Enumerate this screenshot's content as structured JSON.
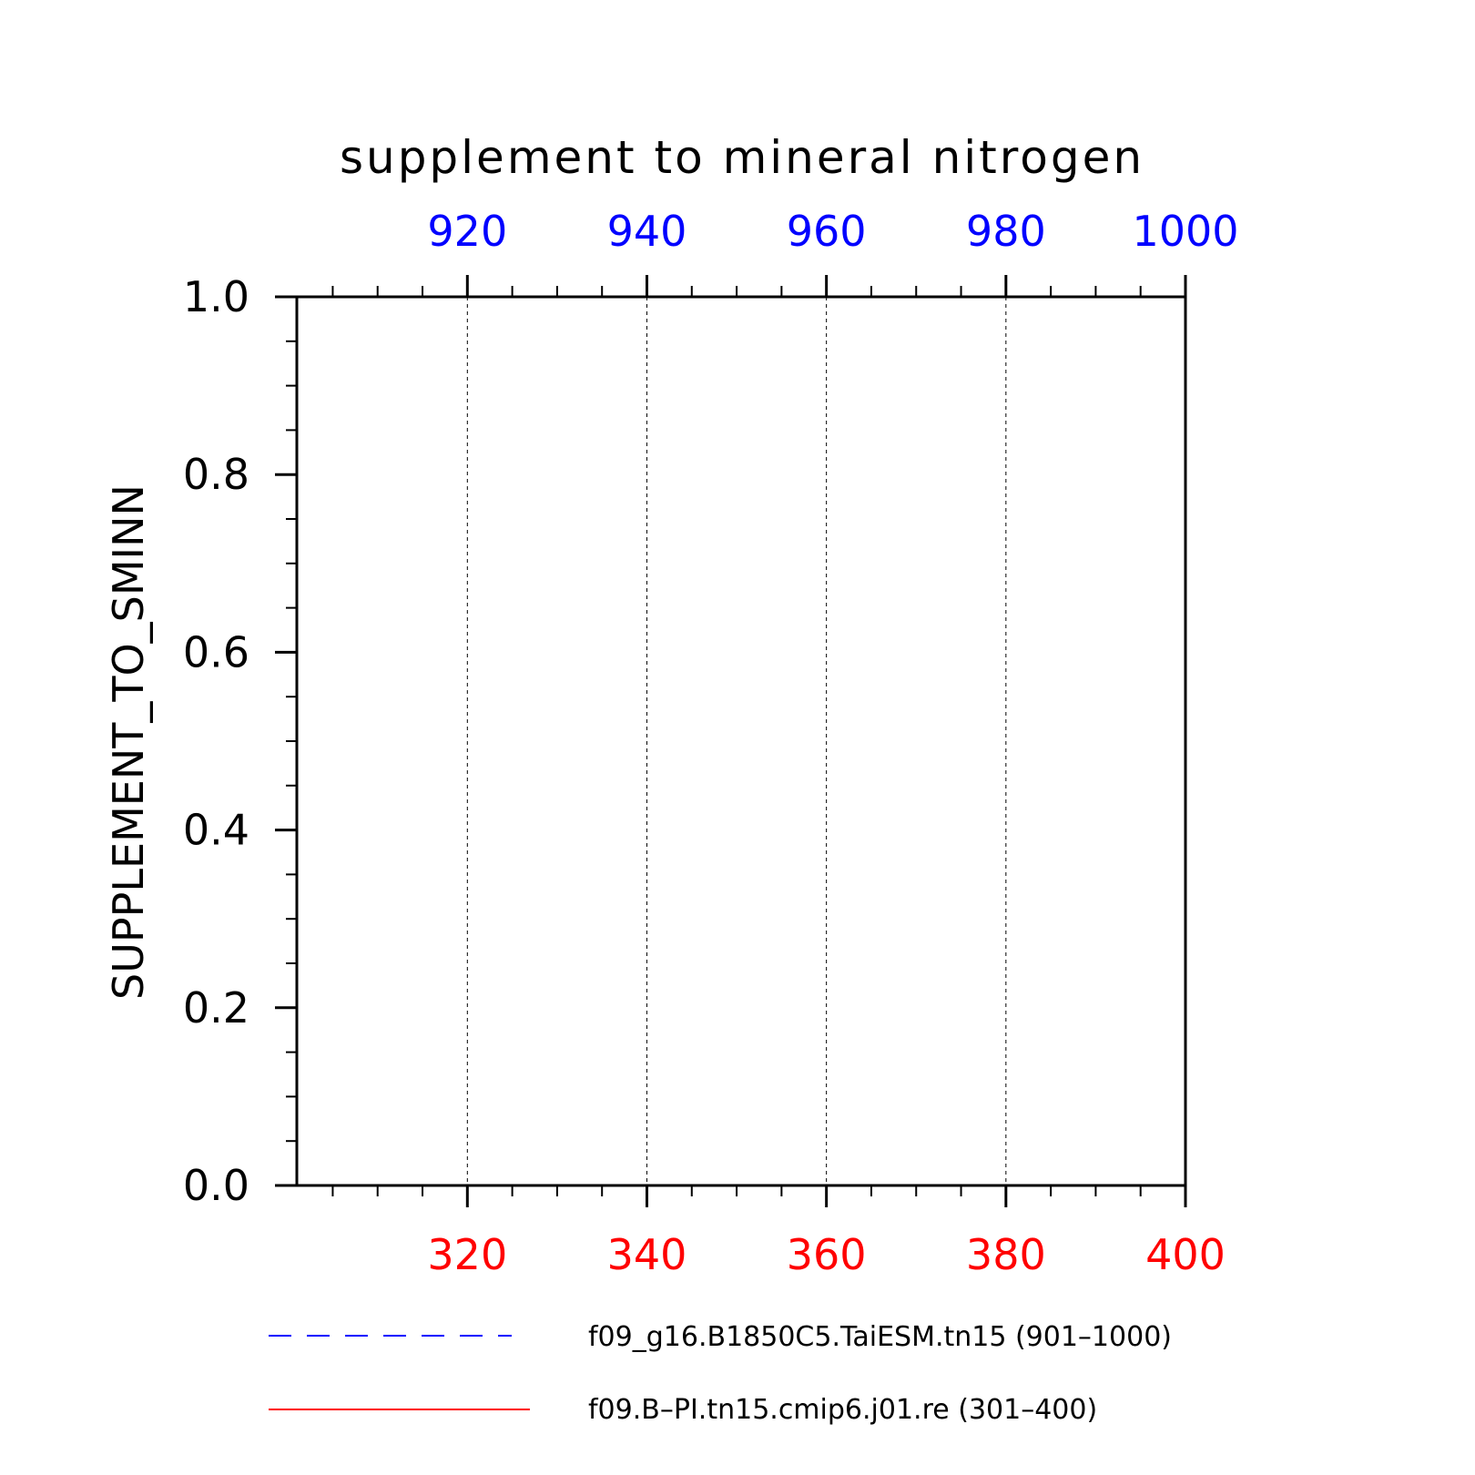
{
  "chart_data": {
    "type": "line",
    "title": "supplement to mineral nitrogen",
    "ylabel": "SUPPLEMENT_TO_SMINN",
    "ylim": [
      0.0,
      1.0
    ],
    "yticks": [
      "0.0",
      "0.2",
      "0.4",
      "0.6",
      "0.8",
      "1.0"
    ],
    "y_minor_step": 0.05,
    "x_bottom": {
      "range": [
        301,
        400
      ],
      "ticks": [
        320,
        340,
        360,
        380,
        400
      ],
      "minor_step": 5,
      "color": "#ff0000"
    },
    "x_top": {
      "range": [
        901,
        1000
      ],
      "ticks": [
        920,
        940,
        960,
        980,
        1000
      ],
      "minor_step": 5,
      "color": "#0000ff"
    },
    "grid": "x-major dashed",
    "series": [
      {
        "name": "f09_g16.B1850C5.TaiESM.tn15 (901–1000)",
        "color": "#0000ff",
        "style": "dashed",
        "axis": "top",
        "x": [],
        "y": []
      },
      {
        "name": "f09.B–PI.tn15.cmip6.j01.re (301–400)",
        "color": "#ff0000",
        "style": "solid",
        "axis": "bottom",
        "x": [],
        "y": []
      }
    ],
    "legend_position": "bottom"
  }
}
